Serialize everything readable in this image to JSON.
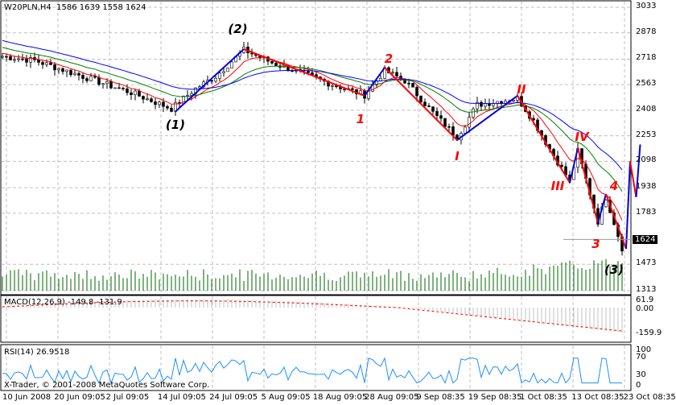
{
  "header": {
    "symbol": "W20PLN,H4",
    "ohlc": "1586 1639 1558 1624"
  },
  "copyright": "X-Trader, © 2001-2008 MetaQuotes Software Corp.",
  "current_price": "1624",
  "colors": {
    "up": "#000000",
    "ma_fast": "#ff0000",
    "ma_mid": "#008000",
    "ma_slow": "#0000ff",
    "wave_up": "#0000dd",
    "wave_down": "#ff0000",
    "volume": "#006400",
    "macd_hist": "#c0c0c0",
    "macd_signal": "#ff0000",
    "rsi": "#1e90ff",
    "grid": "#c0c0c0"
  },
  "chart_data": {
    "type": "candlestick",
    "title": "W20PLN,H4",
    "price_axis": {
      "ylim": [
        1313,
        3033
      ],
      "ticks": [
        "3033",
        "2878",
        "2718",
        "2563",
        "2408",
        "2253",
        "2098",
        "1938",
        "1783",
        "1473",
        "1313"
      ]
    },
    "time_axis": [
      "10 Jun 2008",
      "20 Jun 09:05",
      "2 Jul 09:05",
      "14 Jul 09:05",
      "24 Jul 09:05",
      "5 Aug 09:05",
      "18 Aug 09:05",
      "28 Aug 09:05",
      "9 Sep 08:35",
      "19 Sep 08:35",
      "1 Oct 08:35",
      "13 Oct 08:35",
      "23 Oct 08:35"
    ],
    "price_path": [
      [
        0,
        2735
      ],
      [
        8,
        2710
      ],
      [
        20,
        2613
      ],
      [
        32,
        2515
      ],
      [
        42,
        2417
      ],
      [
        48,
        2540
      ],
      [
        53,
        2613
      ],
      [
        60,
        2774
      ],
      [
        67,
        2696
      ],
      [
        74,
        2637
      ],
      [
        82,
        2564
      ],
      [
        90,
        2500
      ],
      [
        95,
        2647
      ],
      [
        100,
        2588
      ],
      [
        107,
        2393
      ],
      [
        113,
        2246
      ],
      [
        118,
        2442
      ],
      [
        124,
        2466
      ],
      [
        128,
        2481
      ],
      [
        132,
        2344
      ],
      [
        136,
        2173
      ],
      [
        141,
        1978
      ],
      [
        143,
        2158
      ],
      [
        148,
        1733
      ],
      [
        150,
        1880
      ],
      [
        154,
        1572
      ]
    ],
    "waves": [
      [
        [
          43,
          2400
        ],
        [
          60,
          2779
        ]
      ],
      [
        [
          60,
          2779
        ],
        [
          90,
          2496
        ]
      ],
      [
        [
          90,
          2496
        ],
        [
          95,
          2667
        ]
      ],
      [
        [
          95,
          2667
        ],
        [
          113,
          2227
        ]
      ],
      [
        [
          113,
          2227
        ],
        [
          128,
          2496
        ]
      ],
      [
        [
          128,
          2496
        ],
        [
          141,
          1968
        ]
      ],
      [
        [
          141,
          1968
        ],
        [
          143,
          2178
        ]
      ],
      [
        [
          143,
          2178
        ],
        [
          148,
          1723
        ]
      ],
      [
        [
          148,
          1723
        ],
        [
          150,
          1899
        ]
      ],
      [
        [
          150,
          1899
        ],
        [
          155,
          1567
        ]
      ],
      [
        [
          155,
          1567
        ],
        [
          156,
          2098
        ]
      ],
      [
        [
          156,
          2098
        ],
        [
          157.5,
          1880
        ]
      ],
      [
        [
          157.5,
          1880
        ],
        [
          158.5,
          2200
        ]
      ]
    ],
    "labels": [
      {
        "t": "(1)",
        "i": 43,
        "p": 2320,
        "c": "black"
      },
      {
        "t": "(2)",
        "i": 58.5,
        "p": 2900,
        "c": "black"
      },
      {
        "t": "1",
        "i": 89,
        "p": 2355,
        "c": "red"
      },
      {
        "t": "2",
        "i": 96,
        "p": 2720,
        "c": "red"
      },
      {
        "t": "I",
        "i": 113,
        "p": 2130,
        "c": "red"
      },
      {
        "t": "II",
        "i": 129,
        "p": 2535,
        "c": "red"
      },
      {
        "t": "III",
        "i": 138,
        "p": 1950,
        "c": "red"
      },
      {
        "t": "IV",
        "i": 144,
        "p": 2245,
        "c": "red"
      },
      {
        "t": "3",
        "i": 147.5,
        "p": 1595,
        "c": "red"
      },
      {
        "t": "4",
        "i": 152,
        "p": 1950,
        "c": "red"
      },
      {
        "t": "(3)",
        "i": 152,
        "p": 1440,
        "c": "black"
      }
    ],
    "macd": {
      "label": "MACD(12,26,9) -149.8 -131.9",
      "ticks": [
        "61.9",
        "0.00",
        "-159.9"
      ],
      "ylim": [
        -159.9,
        61.9
      ]
    },
    "rsi": {
      "label": "RSI(14) 26.9518",
      "ticks": [
        "100",
        "70",
        "30",
        "0"
      ],
      "ylim": [
        0,
        100
      ]
    }
  }
}
